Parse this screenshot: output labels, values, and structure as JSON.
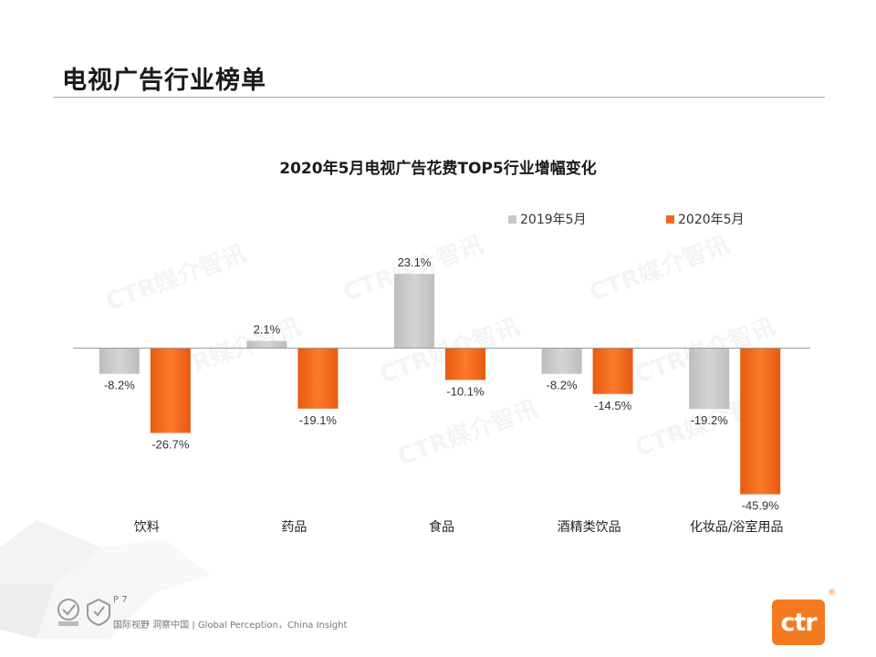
{
  "header": {
    "title": "电视广告行业榜单"
  },
  "chart_data": {
    "type": "bar",
    "title": "2020年5月电视广告花费TOP5行业增幅变化",
    "categories": [
      "饮料",
      "药品",
      "食品",
      "酒精类饮品",
      "化妆品/浴室用品"
    ],
    "series": [
      {
        "name": "2019年5月",
        "values": [
          -8.2,
          2.1,
          23.1,
          -8.2,
          -19.2
        ],
        "labels": [
          "-8.2%",
          "2.1%",
          "23.1%",
          "-8.2%",
          "-19.2%"
        ]
      },
      {
        "name": "2020年5月",
        "values": [
          -26.7,
          -19.1,
          -10.1,
          -14.5,
          -45.9
        ],
        "labels": [
          "-26.7%",
          "-19.1%",
          "-10.1%",
          "-14.5%",
          "-45.9%"
        ]
      }
    ],
    "unit": "%",
    "legend_position": "top-right",
    "gridlines": false,
    "colors": {
      "2019年5月": "#c8c8c8",
      "2020年5月": "#f26522"
    }
  },
  "watermark": {
    "text": "CTR媒介智讯"
  },
  "footer": {
    "page": "P 7",
    "slogan": "国际视野  洞察中国 |  Global Perception，China Insight",
    "logo": "ctr",
    "logo_mark": "®"
  }
}
